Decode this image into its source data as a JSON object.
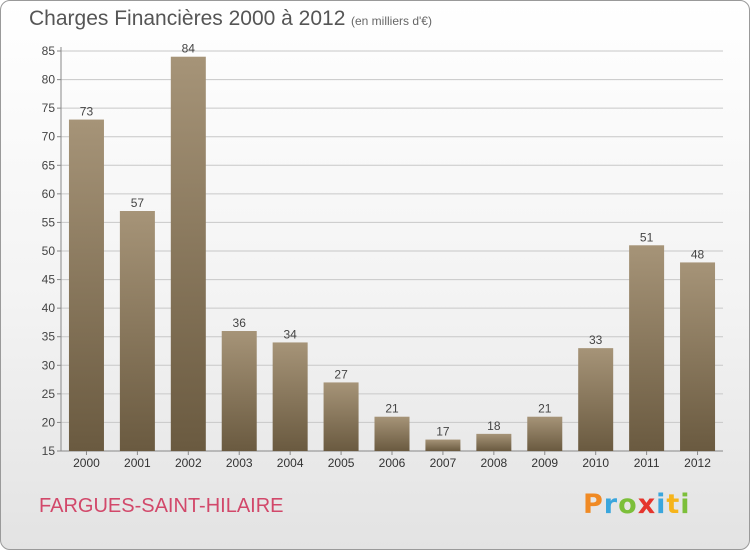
{
  "title": "Charges Financières 2000 à 2012",
  "subtitle": "(en milliers d'€)",
  "commune": "FARGUES-SAINT-HILAIRE",
  "logo": {
    "letters": [
      "P",
      "r",
      "o",
      "x",
      "i",
      "t",
      "i"
    ],
    "colors": [
      "#f08a24",
      "#3aa6dd",
      "#7cbf3a",
      "#e5352d",
      "#3aa6dd",
      "#f6b41a",
      "#7cbf3a"
    ]
  },
  "colors": {
    "bar_light": "#a69478",
    "bar_dark": "#6a5a40",
    "grid": "#c8c8c8",
    "commune_text": "#d2486a"
  },
  "chart_data": {
    "type": "bar",
    "title": "Charges Financières 2000 à 2012",
    "subtitle": "(en milliers d'€)",
    "categories": [
      "2000",
      "2001",
      "2002",
      "2003",
      "2004",
      "2005",
      "2006",
      "2007",
      "2008",
      "2009",
      "2010",
      "2011",
      "2012"
    ],
    "values": [
      73,
      57,
      84,
      36,
      34,
      27,
      21,
      17,
      18,
      21,
      33,
      51,
      48
    ],
    "ylim": [
      15,
      85
    ],
    "yticks": [
      15,
      20,
      25,
      30,
      35,
      40,
      45,
      50,
      55,
      60,
      65,
      70,
      75,
      80,
      85
    ],
    "grid": true,
    "data_labels": true
  }
}
